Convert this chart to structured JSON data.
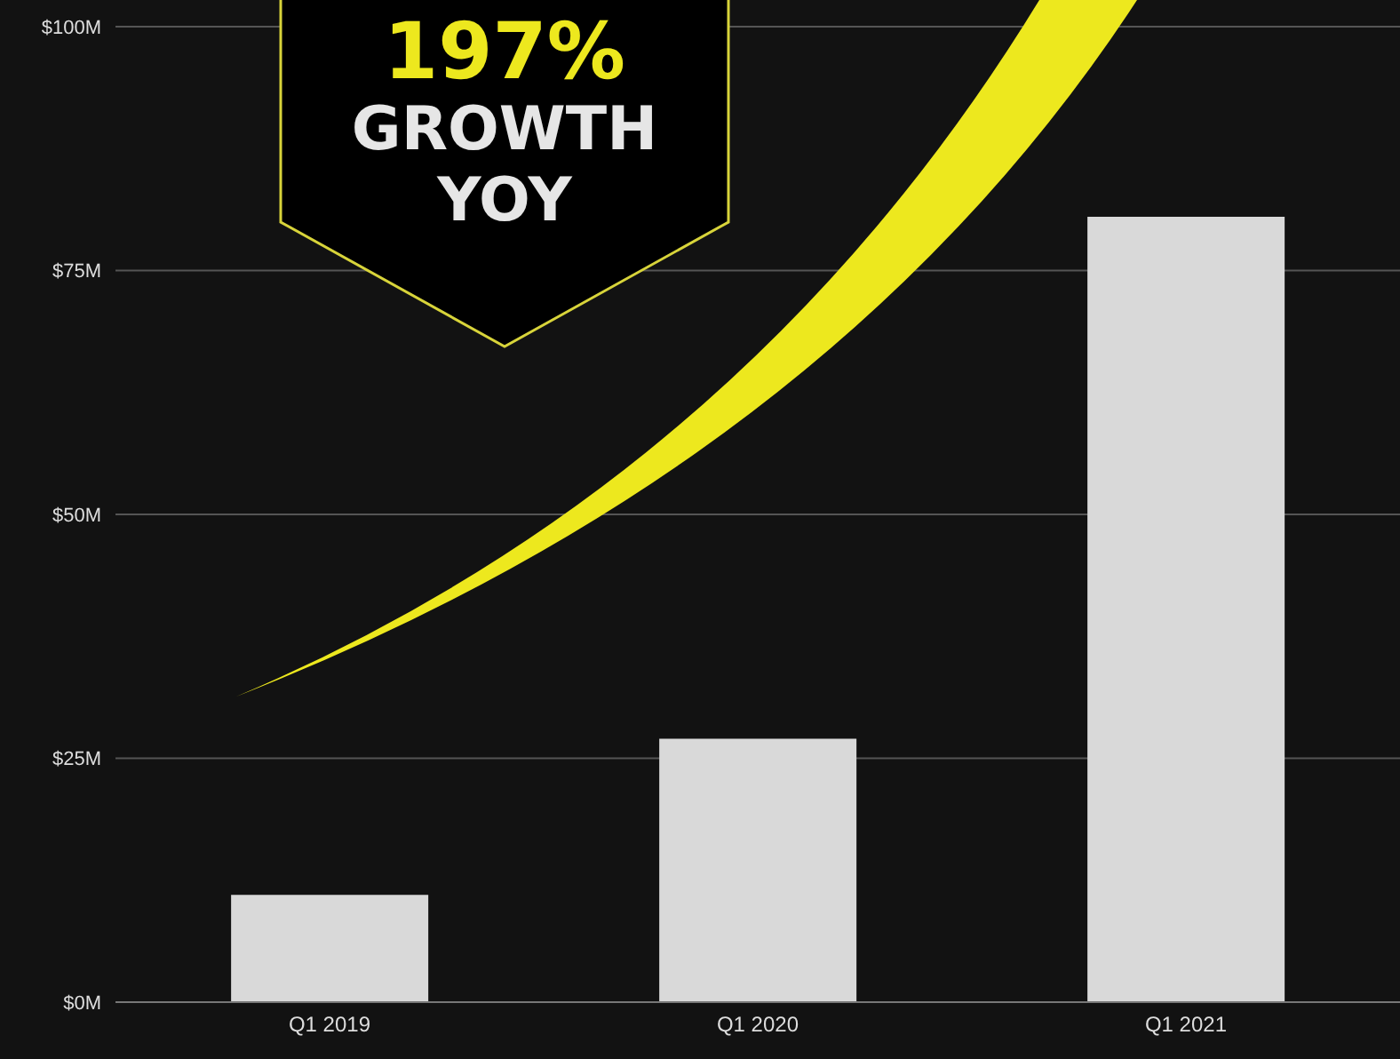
{
  "chart_data": {
    "type": "bar",
    "categories": [
      "Q1 2019",
      "Q1 2020",
      "Q1 2021"
    ],
    "values": [
      11,
      27,
      80.5
    ],
    "color": "#d9d9d9",
    "ylim": [
      0,
      100
    ],
    "yticks": [
      {
        "value": 0,
        "label": "$0M"
      },
      {
        "value": 25,
        "label": "$25M"
      },
      {
        "value": 50,
        "label": "$50M"
      },
      {
        "value": 75,
        "label": "$75M"
      },
      {
        "value": 100,
        "label": "$100M"
      }
    ],
    "grid": "y",
    "annotations": [
      "197%",
      "GROWTH",
      "YOY"
    ]
  }
}
